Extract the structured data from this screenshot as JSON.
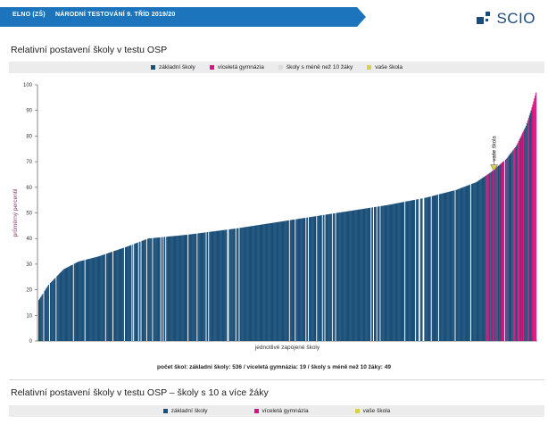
{
  "header": {
    "school": "ELNO (ZŠ)",
    "test_name": "NÁRODNÍ TESTOVÁNÍ 9. TŘÍD 2019/20",
    "logo_text": "SCIO"
  },
  "section1": {
    "title": "Relativní postavení školy v testu OSP",
    "footer": "počet škol: základní školy: 536 / víceletá gymnázia: 19 / školy s méně než 10 žáky: 49"
  },
  "section2": {
    "title": "Relativní postavení školy v testu OSP – školy s 10 a více žáky"
  },
  "legend1": [
    {
      "label": "základní školy",
      "color": "#1a4f78"
    },
    {
      "label": "víceletá gymnázia",
      "color": "#d6157f"
    },
    {
      "label": "školy s méně než 10 žáky",
      "color": "#dcdcdc"
    },
    {
      "label": "vaše škola",
      "color": "#d8d04a"
    }
  ],
  "legend2": [
    {
      "label": "základní školy",
      "color": "#1a4f78"
    },
    {
      "label": "víceletá gymnázia",
      "color": "#d6157f"
    },
    {
      "label": "vaše škola",
      "color": "#d8d04a"
    }
  ],
  "colors": {
    "banner": "#1c75bc",
    "zs": "#1a4f78",
    "gym": "#d6157f",
    "small": "#ffffff",
    "yours": "#d8d04a",
    "axis_label": "#8b3d6e"
  },
  "chart_data": {
    "type": "bar",
    "title": "Relativní postavení školy v testu OSP",
    "xlabel": "jednotlivé zapojené školy",
    "ylabel": "průměrný percentil",
    "ylim": [
      0,
      100
    ],
    "yticks": [
      "0",
      "10",
      "20",
      "30",
      "40",
      "50",
      "60",
      "70",
      "80",
      "90",
      "100"
    ],
    "counts": {
      "zakladni_skoly": 536,
      "vicelete_gymnazia": 19,
      "male_skoly": 49
    },
    "anchors": [
      [
        0,
        16
      ],
      [
        0.02,
        22
      ],
      [
        0.05,
        28
      ],
      [
        0.08,
        31
      ],
      [
        0.12,
        33
      ],
      [
        0.18,
        37
      ],
      [
        0.22,
        40
      ],
      [
        0.3,
        41.5
      ],
      [
        0.4,
        44
      ],
      [
        0.5,
        47
      ],
      [
        0.6,
        50
      ],
      [
        0.7,
        53
      ],
      [
        0.78,
        56
      ],
      [
        0.84,
        59
      ],
      [
        0.88,
        62
      ],
      [
        0.91,
        66
      ],
      [
        0.94,
        71
      ],
      [
        0.96,
        76
      ],
      [
        0.98,
        84
      ],
      [
        0.99,
        90
      ],
      [
        1.0,
        97
      ]
    ],
    "marker": {
      "label": "vaše škola",
      "value": 66,
      "position": 0.915
    }
  }
}
